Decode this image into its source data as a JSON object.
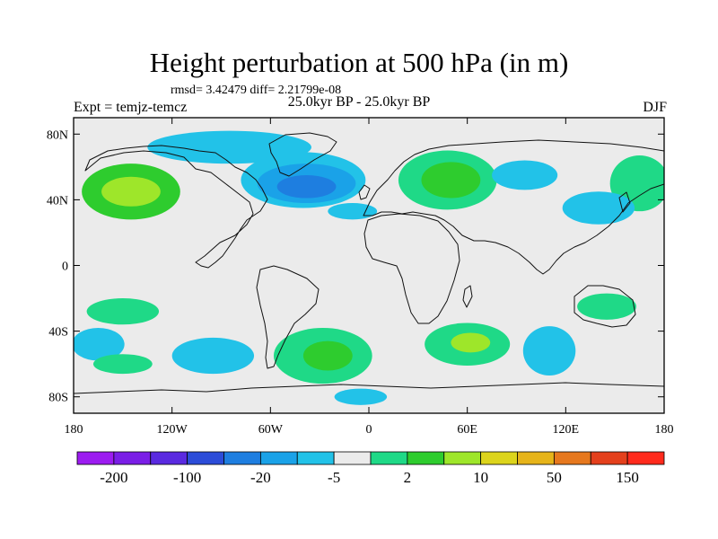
{
  "header": {
    "title": "Height perturbation at 500 hPa (in m)",
    "stats": "rmsd= 3.42479 diff= 2.21799e-08",
    "expt": "Expt = temjz-temcz",
    "period": "25.0kyr BP - 25.0kyr BP",
    "season": "DJF"
  },
  "axes": {
    "lat_ticks": [
      {
        "lat": 80,
        "label": "80N"
      },
      {
        "lat": 40,
        "label": "40N"
      },
      {
        "lat": 0,
        "label": "0"
      },
      {
        "lat": -40,
        "label": "40S"
      },
      {
        "lat": -80,
        "label": "80S"
      }
    ],
    "lon_ticks": [
      {
        "lon": -180,
        "label": "180"
      },
      {
        "lon": -120,
        "label": "120W"
      },
      {
        "lon": -60,
        "label": "60W"
      },
      {
        "lon": 0,
        "label": "0"
      },
      {
        "lon": 60,
        "label": "60E"
      },
      {
        "lon": 120,
        "label": "120E"
      },
      {
        "lon": 180,
        "label": "180"
      }
    ],
    "lat_range": [
      -90,
      90
    ],
    "lon_range": [
      -180,
      180
    ]
  },
  "colorbar": {
    "colors": [
      "#9c1cf0",
      "#7a1ee6",
      "#5a2ae0",
      "#2c4cd8",
      "#1e7ee0",
      "#1aa2e8",
      "#22c2e8",
      "#ebebeb",
      "#1fd987",
      "#2ecc2e",
      "#9ee62a",
      "#dcd41c",
      "#e6b41a",
      "#e6781e",
      "#e4401c",
      "#ff2a1c"
    ],
    "labels": [
      {
        "boundary": 1,
        "text": "-200"
      },
      {
        "boundary": 3,
        "text": "-100"
      },
      {
        "boundary": 5,
        "text": "-20"
      },
      {
        "boundary": 7,
        "text": "-5"
      },
      {
        "boundary": 9,
        "text": "2"
      },
      {
        "boundary": 11,
        "text": "10"
      },
      {
        "boundary": 13,
        "text": "50"
      },
      {
        "boundary": 15,
        "text": "150"
      }
    ]
  },
  "field": {
    "background": "#ebebeb",
    "regions": [
      {
        "name": "n-pacific-positive",
        "color": "#2ecc2e",
        "lon": -145,
        "lat": 45,
        "rx": 30,
        "ry": 17
      },
      {
        "name": "n-pacific-core",
        "color": "#9ee62a",
        "lon": -145,
        "lat": 45,
        "rx": 18,
        "ry": 9
      },
      {
        "name": "arctic-canada-negative",
        "color": "#22c2e8",
        "lon": -85,
        "lat": 72,
        "rx": 50,
        "ry": 10
      },
      {
        "name": "n-atlantic-negative-outer",
        "color": "#22c2e8",
        "lon": -40,
        "lat": 52,
        "rx": 38,
        "ry": 17
      },
      {
        "name": "n-atlantic-negative-mid",
        "color": "#1aa2e8",
        "lon": -38,
        "lat": 50,
        "rx": 30,
        "ry": 12
      },
      {
        "name": "n-atlantic-negative-core",
        "color": "#1e7ee0",
        "lon": -38,
        "lat": 48,
        "rx": 18,
        "ry": 7
      },
      {
        "name": "europe-positive",
        "color": "#1fd987",
        "lon": 48,
        "lat": 52,
        "rx": 30,
        "ry": 18
      },
      {
        "name": "europe-positive-core",
        "color": "#2ecc2e",
        "lon": 50,
        "lat": 52,
        "rx": 18,
        "ry": 11
      },
      {
        "name": "siberia-negative",
        "color": "#22c2e8",
        "lon": 95,
        "lat": 55,
        "rx": 20,
        "ry": 9
      },
      {
        "name": "pacific-nw-positive",
        "color": "#1fd987",
        "lon": 165,
        "lat": 50,
        "rx": 18,
        "ry": 17
      },
      {
        "name": "e-asia-negative",
        "color": "#22c2e8",
        "lon": 140,
        "lat": 35,
        "rx": 22,
        "ry": 10
      },
      {
        "name": "atlantic-subtrop-negative",
        "color": "#22c2e8",
        "lon": -10,
        "lat": 33,
        "rx": 15,
        "ry": 5
      },
      {
        "name": "sw-pacific-positive",
        "color": "#1fd987",
        "lon": -150,
        "lat": -28,
        "rx": 22,
        "ry": 8
      },
      {
        "name": "s-pacific-negative",
        "color": "#22c2e8",
        "lon": -165,
        "lat": -48,
        "rx": 16,
        "ry": 10
      },
      {
        "name": "se-pacific-negative",
        "color": "#22c2e8",
        "lon": -95,
        "lat": -55,
        "rx": 25,
        "ry": 11
      },
      {
        "name": "s-pacific-positive",
        "color": "#1fd987",
        "lon": -150,
        "lat": -60,
        "rx": 18,
        "ry": 6
      },
      {
        "name": "s-atlantic-positive",
        "color": "#1fd987",
        "lon": -28,
        "lat": -55,
        "rx": 30,
        "ry": 17
      },
      {
        "name": "s-atlantic-positive-core",
        "color": "#2ecc2e",
        "lon": -25,
        "lat": -55,
        "rx": 15,
        "ry": 9
      },
      {
        "name": "s-atlantic-negative",
        "color": "#22c2e8",
        "lon": -5,
        "lat": -80,
        "rx": 16,
        "ry": 5
      },
      {
        "name": "s-indian-positive",
        "color": "#1fd987",
        "lon": 60,
        "lat": -48,
        "rx": 26,
        "ry": 13
      },
      {
        "name": "s-indian-positive-core",
        "color": "#9ee62a",
        "lon": 62,
        "lat": -47,
        "rx": 12,
        "ry": 6
      },
      {
        "name": "s-indian-negative",
        "color": "#22c2e8",
        "lon": 110,
        "lat": -52,
        "rx": 16,
        "ry": 15
      },
      {
        "name": "australia-positive",
        "color": "#1fd987",
        "lon": 145,
        "lat": -25,
        "rx": 18,
        "ry": 8
      }
    ]
  }
}
